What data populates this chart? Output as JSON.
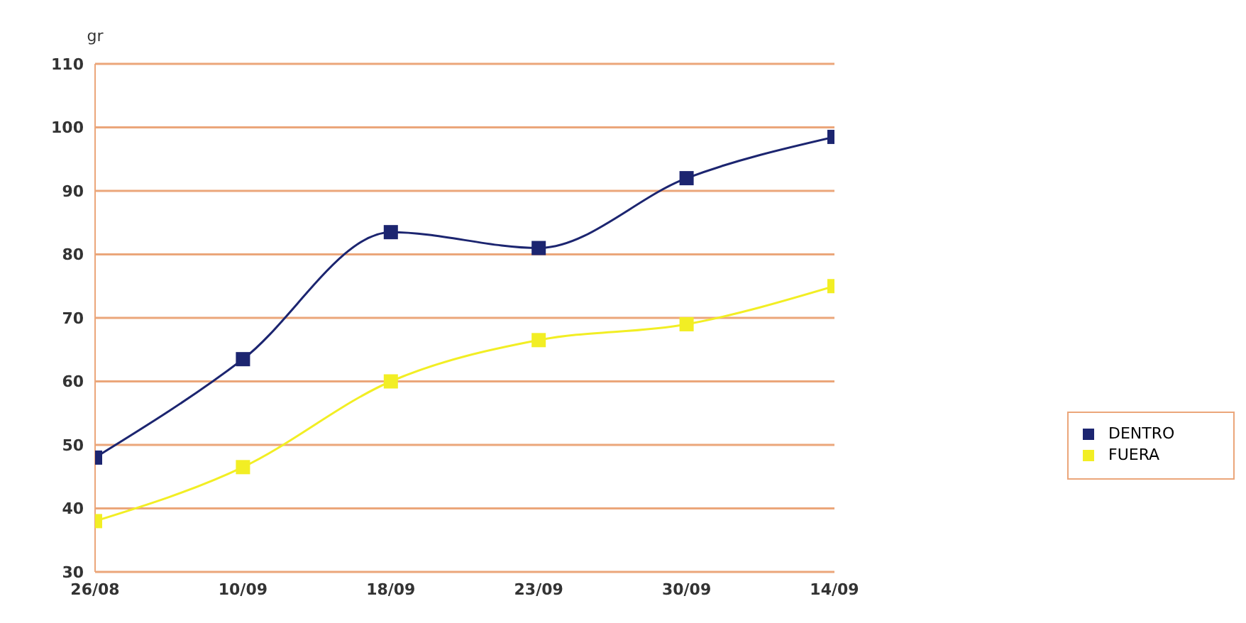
{
  "chart_data": {
    "type": "line",
    "ylabel": "gr",
    "categories": [
      "26/08",
      "10/09",
      "18/09",
      "23/09",
      "30/09",
      "14/09"
    ],
    "series": [
      {
        "name": "DENTRO",
        "color": "#1c2570",
        "values": [
          48,
          63.5,
          83.5,
          81,
          92,
          98.5
        ]
      },
      {
        "name": "FUERA",
        "color": "#f2ee24",
        "values": [
          38,
          46.5,
          60,
          66.5,
          69,
          75
        ]
      }
    ],
    "ylim": [
      30,
      110
    ],
    "yticks": [
      30,
      40,
      50,
      60,
      70,
      80,
      90,
      100,
      110
    ],
    "grid": "y",
    "legend": "right",
    "marker": "square",
    "line_style": "solid"
  }
}
